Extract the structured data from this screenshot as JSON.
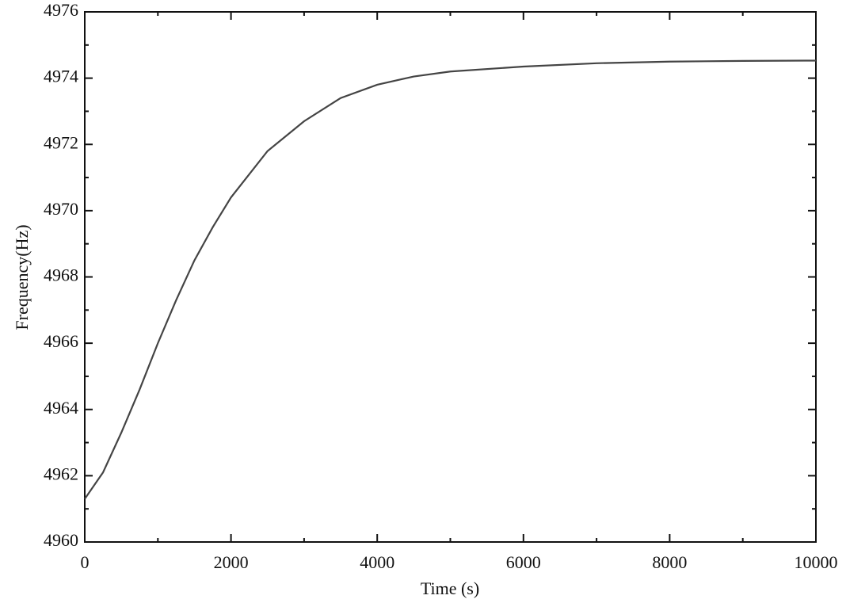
{
  "chart_data": {
    "type": "line",
    "x_label": "Time (s)",
    "y_label": "Frequency(Hz)",
    "x": [
      0,
      250,
      500,
      750,
      1000,
      1250,
      1500,
      1750,
      2000,
      2500,
      3000,
      3500,
      4000,
      4500,
      5000,
      6000,
      7000,
      8000,
      9000,
      10000
    ],
    "series": [
      {
        "name": "Frequency",
        "color": "#444444",
        "values": [
          4961.3,
          4962.1,
          4963.3,
          4964.6,
          4966.0,
          4967.3,
          4968.5,
          4969.5,
          4970.4,
          4971.8,
          4972.7,
          4973.4,
          4973.8,
          4974.05,
          4974.2,
          4974.35,
          4974.45,
          4974.5,
          4974.52,
          4974.53
        ]
      }
    ],
    "xlim": [
      0,
      10000
    ],
    "xticks": [
      0,
      2000,
      4000,
      6000,
      8000,
      10000
    ],
    "ylim": [
      4960,
      4976
    ],
    "yticks": [
      4960,
      4962,
      4964,
      4966,
      4968,
      4970,
      4972,
      4974,
      4976
    ],
    "grid": false
  }
}
